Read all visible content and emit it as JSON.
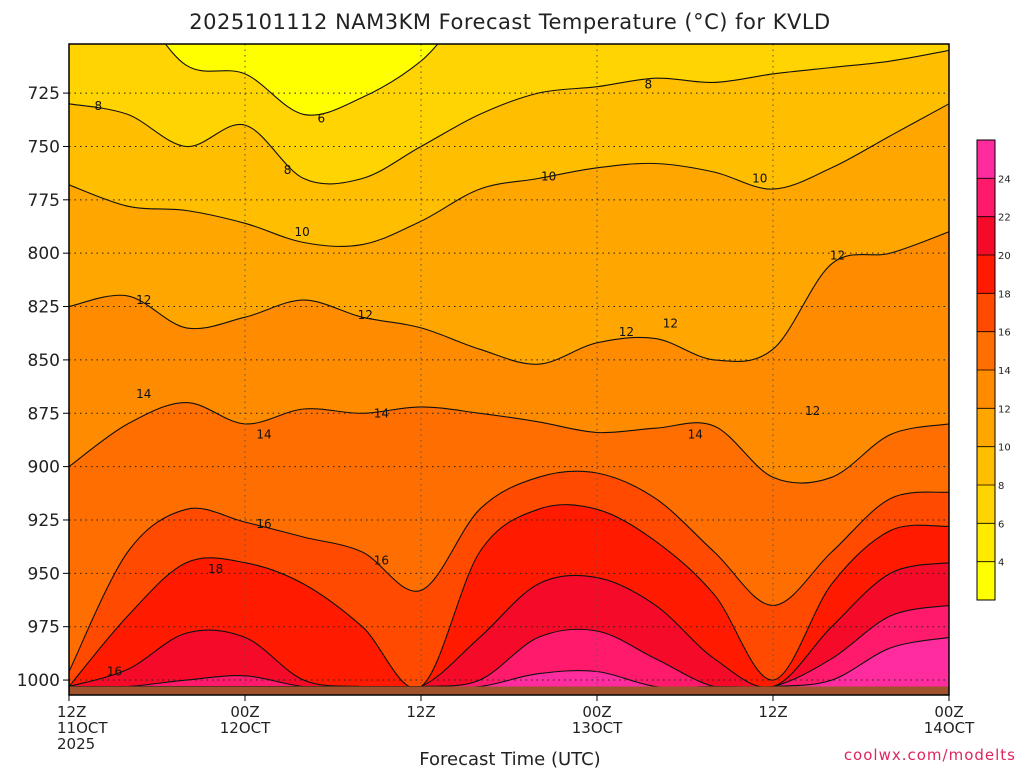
{
  "chart_data": {
    "type": "heatmap",
    "title": "2025101112 NAM3KM Forecast Temperature (°C) for KVLD",
    "xlabel": "Forecast Time (UTC)",
    "ylabel": "",
    "credit": "coolwx.com/modelts",
    "y_axis": {
      "unit": "hPa",
      "reversed": true,
      "range": [
        1007,
        702
      ],
      "ticks": [
        725,
        750,
        775,
        800,
        825,
        850,
        875,
        900,
        925,
        950,
        975,
        1000
      ],
      "tick_labels": [
        "725",
        "750",
        "775",
        "800",
        "825",
        "850",
        "875",
        "900",
        "925",
        "950",
        "975",
        "1000"
      ]
    },
    "x_axis": {
      "range": [
        "2025-10-11 12Z",
        "2025-10-14 00Z"
      ],
      "ticks": [
        {
          "hour": 0,
          "lines": [
            "12Z",
            "11OCT",
            "2025"
          ]
        },
        {
          "hour": 12,
          "lines": [
            "00Z",
            "12OCT"
          ]
        },
        {
          "hour": 24,
          "lines": [
            "12Z"
          ]
        },
        {
          "hour": 36,
          "lines": [
            "00Z",
            "13OCT"
          ]
        },
        {
          "hour": 48,
          "lines": [
            "12Z"
          ]
        },
        {
          "hour": 60,
          "lines": [
            "00Z",
            "14OCT"
          ]
        }
      ]
    },
    "grid": true,
    "colorbar": {
      "placement": "right",
      "levels": [
        2,
        4,
        6,
        8,
        10,
        12,
        14,
        16,
        18,
        20,
        22,
        24,
        26
      ],
      "tick_labels": [
        "4",
        "6",
        "8",
        "10",
        "12",
        "14",
        "16",
        "18",
        "20",
        "22",
        "24"
      ],
      "colors": [
        "#ffff00",
        "#ffea00",
        "#ffd400",
        "#ffbe00",
        "#ffa600",
        "#ff8c00",
        "#ff6e00",
        "#ff4a00",
        "#ff1a00",
        "#f50a2a",
        "#ff1a6c",
        "#ff2ca0"
      ]
    },
    "contour_labels": [
      {
        "text": "8",
        "hour": 2.0,
        "p": 731
      },
      {
        "text": "6",
        "hour": 17.2,
        "p": 737
      },
      {
        "text": "8",
        "hour": 14.9,
        "p": 761
      },
      {
        "text": "8",
        "hour": 39.5,
        "p": 721
      },
      {
        "text": "10",
        "hour": 32.7,
        "p": 764
      },
      {
        "text": "10",
        "hour": 47.1,
        "p": 765
      },
      {
        "text": "10",
        "hour": 15.9,
        "p": 790
      },
      {
        "text": "12",
        "hour": 5.1,
        "p": 822
      },
      {
        "text": "12",
        "hour": 20.2,
        "p": 829
      },
      {
        "text": "12",
        "hour": 38.0,
        "p": 837
      },
      {
        "text": "12",
        "hour": 41.0,
        "p": 833
      },
      {
        "text": "12",
        "hour": 52.4,
        "p": 801
      },
      {
        "text": "12",
        "hour": 50.7,
        "p": 874
      },
      {
        "text": "14",
        "hour": 5.1,
        "p": 866
      },
      {
        "text": "14",
        "hour": 13.3,
        "p": 885
      },
      {
        "text": "14",
        "hour": 21.3,
        "p": 875
      },
      {
        "text": "14",
        "hour": 42.7,
        "p": 885
      },
      {
        "text": "16",
        "hour": 13.3,
        "p": 927
      },
      {
        "text": "16",
        "hour": 21.3,
        "p": 944
      },
      {
        "text": "16",
        "hour": 3.1,
        "p": 996
      },
      {
        "text": "18",
        "hour": 10.0,
        "p": 948
      }
    ],
    "levels_profile": {
      "description": "approximate pressure (hPa) of isotherm levels across forecast hours",
      "hours": [
        0,
        4,
        8,
        12,
        16,
        20,
        24,
        28,
        32,
        36,
        40,
        44,
        48,
        52,
        56,
        60
      ],
      "isotherms": {
        "6": [
          0,
          0,
          712,
          716,
          735,
          727,
          710,
          0,
          0,
          0,
          0,
          0,
          0,
          0,
          0,
          0
        ],
        "8": [
          730,
          735,
          750,
          740,
          765,
          765,
          750,
          735,
          725,
          722,
          718,
          720,
          716,
          713,
          710,
          705
        ],
        "10": [
          768,
          778,
          780,
          786,
          795,
          796,
          785,
          770,
          765,
          760,
          758,
          762,
          770,
          760,
          745,
          730
        ],
        "12": [
          825,
          820,
          835,
          830,
          822,
          830,
          835,
          845,
          852,
          842,
          840,
          850,
          845,
          805,
          800,
          790
        ],
        "14": [
          900,
          880,
          870,
          880,
          873,
          875,
          872,
          875,
          879,
          884,
          882,
          881,
          905,
          905,
          885,
          880
        ],
        "16": [
          996,
          940,
          920,
          926,
          933,
          940,
          958,
          920,
          905,
          903,
          915,
          940,
          965,
          940,
          915,
          912
        ],
        "18": [
          1003,
          970,
          945,
          945,
          955,
          975,
          1003,
          940,
          920,
          920,
          935,
          960,
          1000,
          955,
          930,
          928
        ],
        "20": [
          1003,
          995,
          978,
          980,
          1000,
          1003,
          1003,
          980,
          955,
          952,
          965,
          990,
          1003,
          975,
          950,
          945
        ],
        "22": [
          1003,
          1003,
          1000,
          998,
          1003,
          1003,
          1003,
          1000,
          980,
          977,
          990,
          1003,
          1003,
          990,
          970,
          965
        ],
        "24": [
          1003,
          1003,
          1003,
          1003,
          1003,
          1003,
          1003,
          1003,
          997,
          996,
          1003,
          1003,
          1003,
          1000,
          985,
          980
        ]
      }
    },
    "terrain": {
      "color": "#a0522d",
      "surface_p": 1003
    }
  }
}
